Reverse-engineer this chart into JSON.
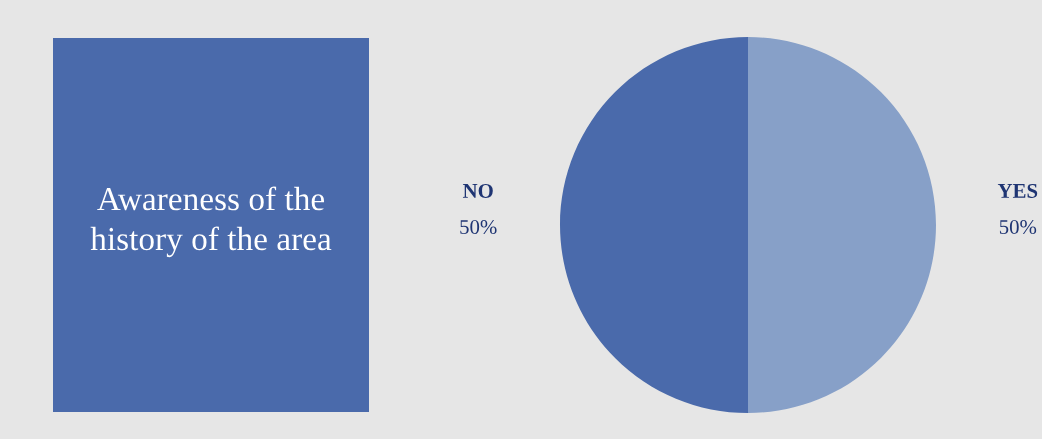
{
  "chart_data": {
    "type": "pie",
    "title": "Awareness of the history of the area",
    "categories": [
      "YES",
      "NO"
    ],
    "values": [
      50,
      50
    ],
    "colors": [
      "#87a0c8",
      "#4a6aab"
    ],
    "value_labels": [
      "50%",
      "50%"
    ]
  }
}
